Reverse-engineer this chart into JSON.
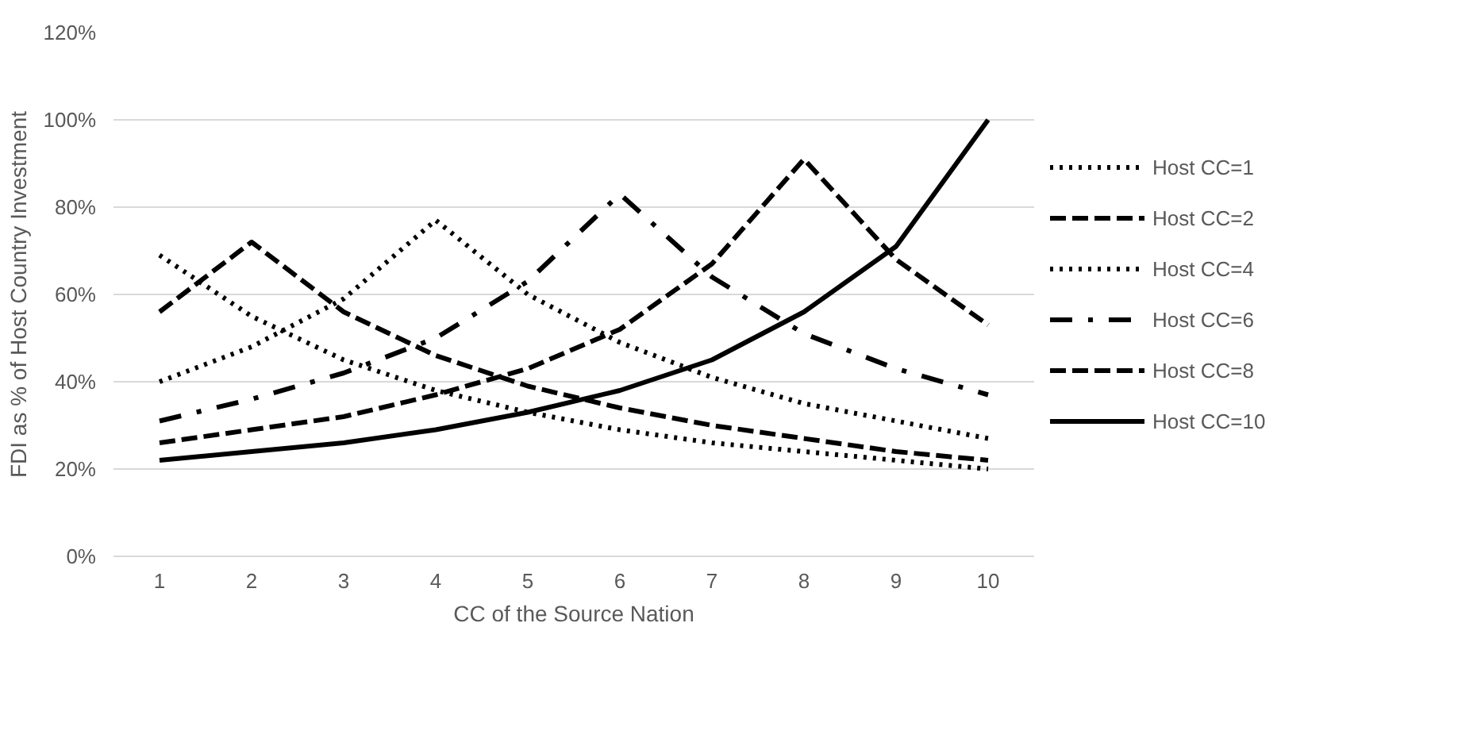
{
  "chart_data": {
    "type": "line",
    "xlabel": "CC of the Source Nation",
    "ylabel": "FDI as % of Host Country Investment",
    "categories": [
      "1",
      "2",
      "3",
      "4",
      "5",
      "6",
      "7",
      "8",
      "9",
      "10"
    ],
    "ylim": [
      0,
      120
    ],
    "yticks": [
      {
        "value": 0,
        "label": "0%"
      },
      {
        "value": 20,
        "label": "20%"
      },
      {
        "value": 40,
        "label": "40%"
      },
      {
        "value": 60,
        "label": "60%"
      },
      {
        "value": 80,
        "label": "80%"
      },
      {
        "value": 100,
        "label": "100%"
      },
      {
        "value": 120,
        "label": "120%"
      }
    ],
    "grid": "y",
    "legend": "right",
    "marker": "none",
    "series": [
      {
        "name": "Host CC=1",
        "color": "#000000",
        "line_style": "dotted",
        "values": [
          69,
          55,
          45,
          38,
          33,
          29,
          26,
          24,
          22,
          20
        ]
      },
      {
        "name": "Host CC=2",
        "color": "#000000",
        "line_style": "dashed",
        "values": [
          56,
          72,
          56,
          46,
          39,
          34,
          30,
          27,
          24,
          22
        ]
      },
      {
        "name": "Host CC=4",
        "color": "#000000",
        "line_style": "dotted",
        "values": [
          40,
          48,
          59,
          77,
          60,
          49,
          41,
          35,
          31,
          27
        ]
      },
      {
        "name": "Host CC=6",
        "color": "#000000",
        "line_style": "dashdot",
        "values": [
          31,
          36,
          42,
          50,
          63,
          83,
          64,
          51,
          43,
          37
        ]
      },
      {
        "name": "Host CC=8",
        "color": "#000000",
        "line_style": "dashed",
        "values": [
          26,
          29,
          32,
          37,
          43,
          52,
          67,
          91,
          68,
          53
        ]
      },
      {
        "name": "Host CC=10",
        "color": "#000000",
        "line_style": "solid",
        "values": [
          22,
          24,
          26,
          29,
          33,
          38,
          45,
          56,
          71,
          100
        ]
      }
    ]
  }
}
